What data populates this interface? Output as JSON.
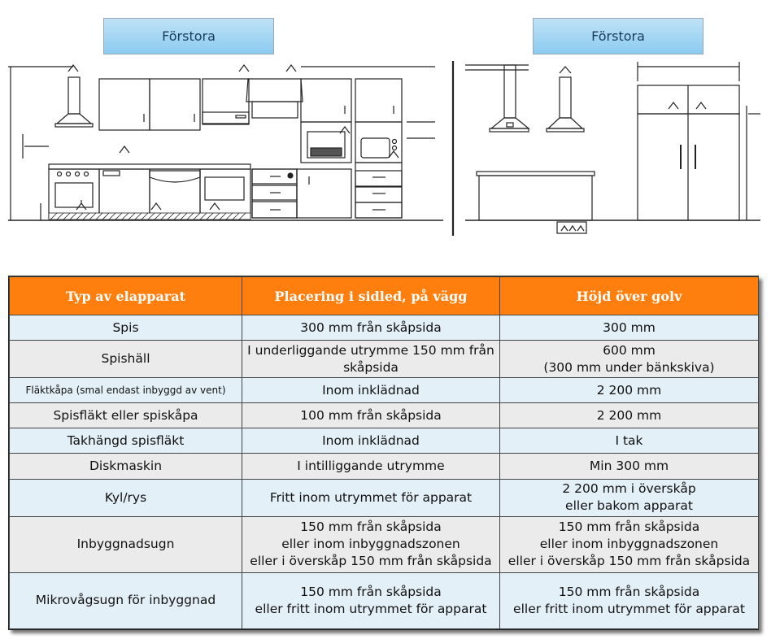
{
  "buttons": {
    "left": "Förstora",
    "right": "Förstora"
  },
  "table": {
    "headers": [
      "Typ av elapparat",
      "Placering i sidled, på vägg",
      "Höjd över golv"
    ],
    "rows": [
      [
        "Spis",
        "300 mm från skåpsida",
        "300 mm"
      ],
      [
        "Spishäll",
        "I underliggande utrymme 150 mm från skåpsida",
        "600 mm\n(300 mm under bänkskiva)"
      ],
      [
        "Fläktkåpa (smal endast inbyggd av vent)",
        "Inom inklädnad",
        "2 200 mm"
      ],
      [
        "Spisfläkt eller spiskåpa",
        "100 mm från skåpsida",
        "2 200 mm"
      ],
      [
        "Takhängd spisfläkt",
        "Inom inklädnad",
        "I tak"
      ],
      [
        "Diskmaskin",
        "I intilliggande utrymme",
        "Min 300 mm"
      ],
      [
        "Kyl/rys",
        "Fritt inom utrymmet för apparat",
        "2 200 mm i överskåp\neller bakom apparat"
      ],
      [
        "Inbyggnadsugn",
        "150 mm från skåpsida\neller inom inbyggnadszonen\neller i överskåp 150 mm från skåpsida",
        "150 mm från skåpsida\neller inom inbyggnadszonen\neller i överskåp 150 mm från skåpsida"
      ],
      [
        "Mikrovågsugn för inbyggnad",
        "150 mm från skåpsida\neller fritt inom utrymmet för apparat",
        "150 mm från skåpsida\neller fritt inom utrymmet för apparat"
      ]
    ]
  }
}
